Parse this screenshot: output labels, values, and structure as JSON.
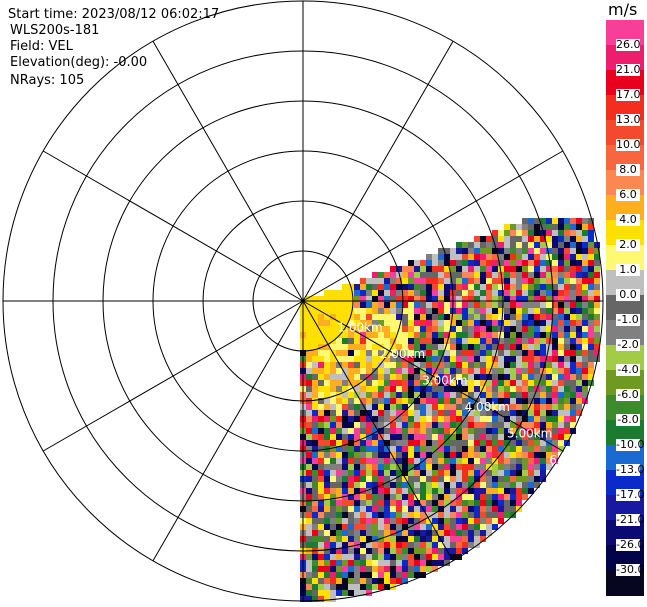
{
  "header": {
    "start_time": "Start time: 2023/08/12 06:02:17",
    "instrument": "WLS200s-181",
    "field": "Field: VEL",
    "elevation": "Elevation(deg): -0.00",
    "nrays": "NRays: 105"
  },
  "chart_data": {
    "type": "heatmap",
    "subtype": "polar-ppi",
    "field": "VEL",
    "units": "m/s",
    "sector_azimuth_deg": [
      70,
      180
    ],
    "max_range_km": 6,
    "range_ring_labels": [
      "1.00km",
      "2.00km",
      "3.00km",
      "4.00km",
      "5.00km",
      "6.00km"
    ],
    "range_rings_drawn": 6,
    "spokes_every_deg": 30,
    "colorbar": {
      "label": "m/s",
      "ticks": [
        "26.0",
        "21.0",
        "17.0",
        "13.0",
        "10.0",
        "8.0",
        "6.0",
        "4.0",
        "2.0",
        "1.0",
        "0.0",
        "-1.0",
        "-2.0",
        "-4.0",
        "-6.0",
        "-8.0",
        "-10.0",
        "-13.0",
        "-17.0",
        "-21.0",
        "-26.0",
        "-30.0"
      ],
      "colors": [
        "#f73f9a",
        "#ee1e6e",
        "#e8001c",
        "#f32e1e",
        "#f5492f",
        "#f86640",
        "#fb8852",
        "#ffaf1e",
        "#ffe000",
        "#fff870",
        "#bfbfbf",
        "#666666",
        "#808080",
        "#a2cc46",
        "#6f9a22",
        "#3d8b2c",
        "#1b7c30",
        "#1a6ad2",
        "#0a2ac9",
        "#1818a0",
        "#0a0a70",
        "#03034a",
        "#060620"
      ]
    }
  }
}
